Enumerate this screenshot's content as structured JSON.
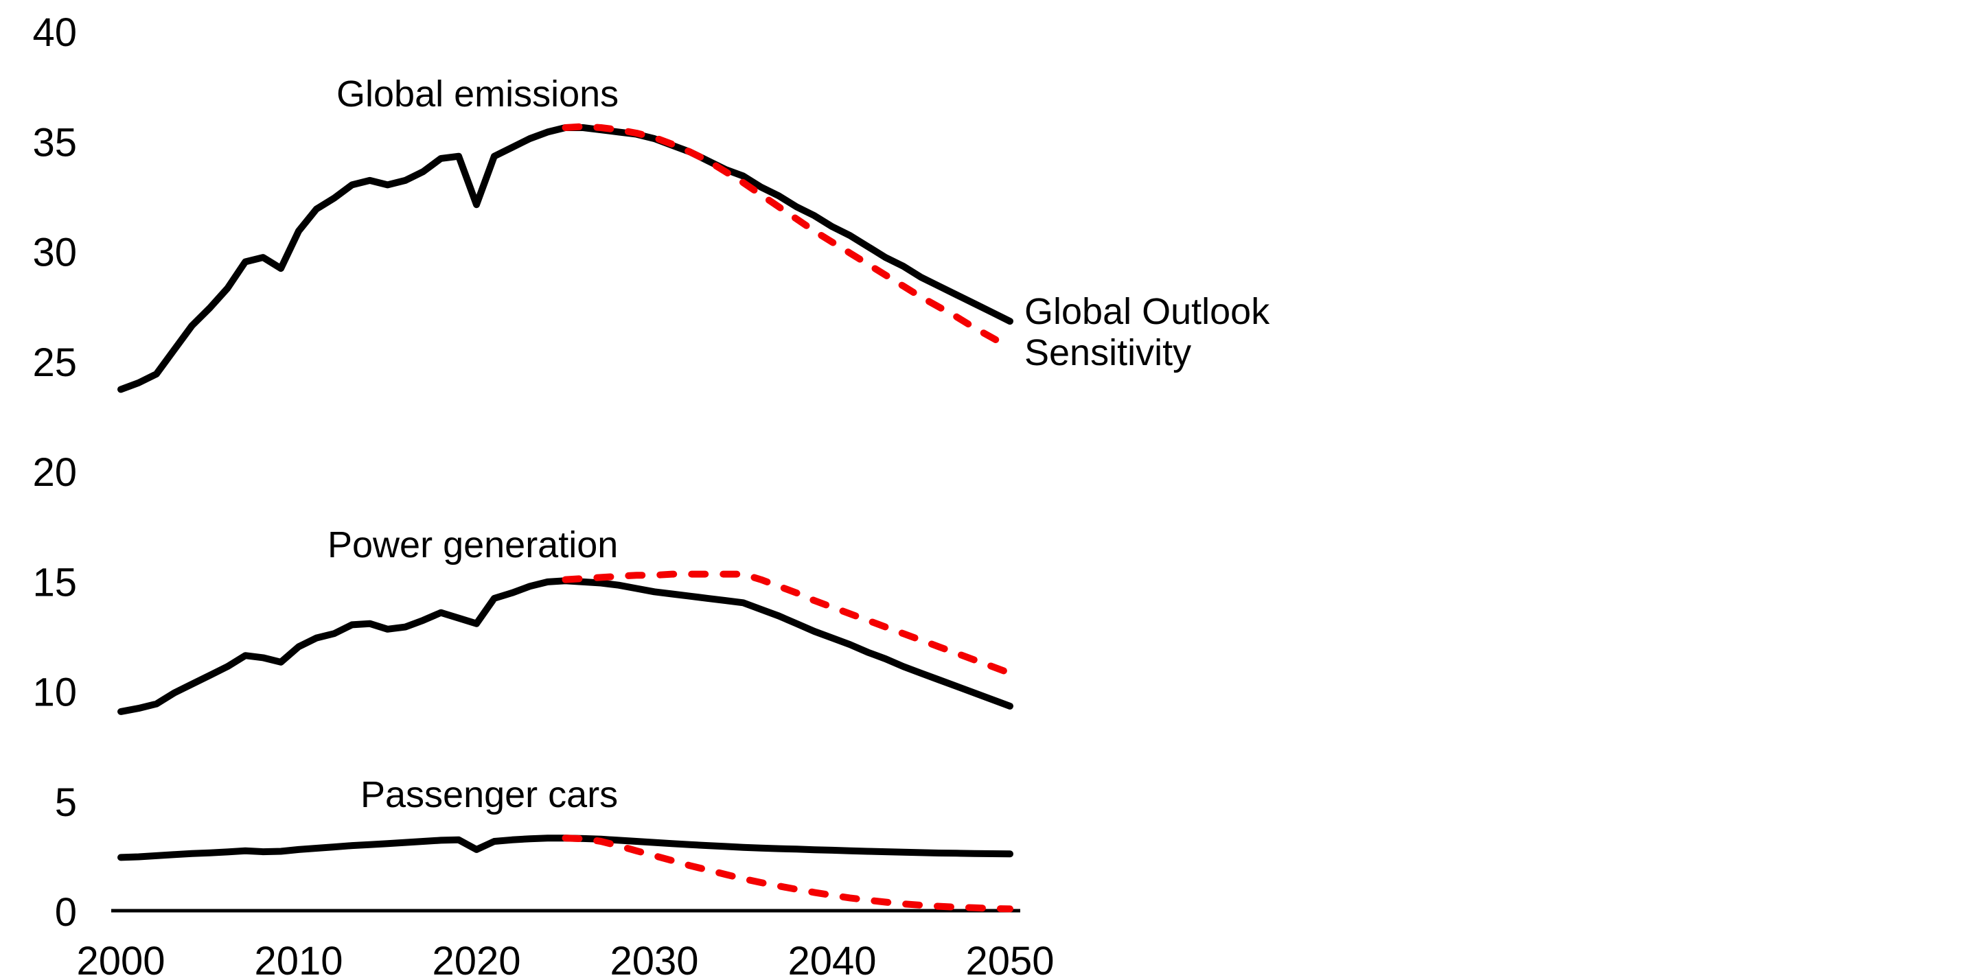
{
  "page": {
    "background": "#ffffff"
  },
  "chart_data": {
    "type": "line",
    "title": "",
    "xlabel": "",
    "ylabel": "",
    "xlim": [
      2000,
      2050
    ],
    "ylim": [
      0,
      40
    ],
    "x_ticks": [
      2000,
      2010,
      2020,
      2030,
      2040,
      2050
    ],
    "y_ticks": [
      0,
      5,
      10,
      15,
      20,
      25,
      30,
      35,
      40
    ],
    "grid": false,
    "axis_line_color": "#000000",
    "legend_position": "right-of-line-ends",
    "legend": {
      "outlook_label": "Global Outlook",
      "sensitivity_label": "Sensitivity",
      "outlook_color": "#000000",
      "sensitivity_color": "#f40000"
    },
    "groups": [
      {
        "label": "Global emissions",
        "series": [
          {
            "name": "Global Outlook",
            "style": "solid",
            "color": "#000000",
            "points": [
              [
                2000,
                23.7
              ],
              [
                2001,
                24.0
              ],
              [
                2002,
                24.4
              ],
              [
                2003,
                25.5
              ],
              [
                2004,
                26.6
              ],
              [
                2005,
                27.4
              ],
              [
                2006,
                28.3
              ],
              [
                2007,
                29.5
              ],
              [
                2008,
                29.7
              ],
              [
                2009,
                29.2
              ],
              [
                2010,
                30.9
              ],
              [
                2011,
                31.9
              ],
              [
                2012,
                32.4
              ],
              [
                2013,
                33.0
              ],
              [
                2014,
                33.2
              ],
              [
                2015,
                33.0
              ],
              [
                2016,
                33.2
              ],
              [
                2017,
                33.6
              ],
              [
                2018,
                34.2
              ],
              [
                2019,
                34.3
              ],
              [
                2020,
                32.1
              ],
              [
                2021,
                34.3
              ],
              [
                2022,
                34.7
              ],
              [
                2023,
                35.1
              ],
              [
                2024,
                35.4
              ],
              [
                2025,
                35.6
              ],
              [
                2026,
                35.6
              ],
              [
                2027,
                35.5
              ],
              [
                2028,
                35.4
              ],
              [
                2029,
                35.3
              ],
              [
                2030,
                35.1
              ],
              [
                2031,
                34.8
              ],
              [
                2032,
                34.5
              ],
              [
                2033,
                34.1
              ],
              [
                2034,
                33.7
              ],
              [
                2035,
                33.4
              ],
              [
                2036,
                32.9
              ],
              [
                2037,
                32.5
              ],
              [
                2038,
                32.0
              ],
              [
                2039,
                31.6
              ],
              [
                2040,
                31.1
              ],
              [
                2041,
                30.7
              ],
              [
                2042,
                30.2
              ],
              [
                2043,
                29.7
              ],
              [
                2044,
                29.3
              ],
              [
                2045,
                28.8
              ],
              [
                2046,
                28.4
              ],
              [
                2047,
                28.0
              ],
              [
                2048,
                27.6
              ],
              [
                2049,
                27.2
              ],
              [
                2050,
                26.8
              ]
            ]
          },
          {
            "name": "Sensitivity",
            "style": "dashed",
            "color": "#f40000",
            "points": [
              [
                2025,
                35.6
              ],
              [
                2026,
                35.65
              ],
              [
                2027,
                35.6
              ],
              [
                2028,
                35.5
              ],
              [
                2029,
                35.35
              ],
              [
                2030,
                35.15
              ],
              [
                2031,
                34.85
              ],
              [
                2032,
                34.5
              ],
              [
                2033,
                34.1
              ],
              [
                2034,
                33.6
              ],
              [
                2035,
                33.1
              ],
              [
                2036,
                32.55
              ],
              [
                2037,
                32.0
              ],
              [
                2038,
                31.45
              ],
              [
                2039,
                30.9
              ],
              [
                2040,
                30.4
              ],
              [
                2041,
                29.9
              ],
              [
                2042,
                29.4
              ],
              [
                2043,
                28.9
              ],
              [
                2044,
                28.4
              ],
              [
                2045,
                27.9
              ],
              [
                2046,
                27.45
              ],
              [
                2047,
                27.0
              ],
              [
                2048,
                26.5
              ],
              [
                2049,
                26.05
              ],
              [
                2050,
                25.6
              ]
            ]
          }
        ]
      },
      {
        "label": "Power generation",
        "series": [
          {
            "name": "Global Outlook",
            "style": "solid",
            "color": "#000000",
            "points": [
              [
                2000,
                9.05
              ],
              [
                2001,
                9.2
              ],
              [
                2002,
                9.4
              ],
              [
                2003,
                9.9
              ],
              [
                2004,
                10.3
              ],
              [
                2005,
                10.7
              ],
              [
                2006,
                11.1
              ],
              [
                2007,
                11.6
              ],
              [
                2008,
                11.5
              ],
              [
                2009,
                11.3
              ],
              [
                2010,
                12.0
              ],
              [
                2011,
                12.4
              ],
              [
                2012,
                12.6
              ],
              [
                2013,
                13.0
              ],
              [
                2014,
                13.05
              ],
              [
                2015,
                12.8
              ],
              [
                2016,
                12.9
              ],
              [
                2017,
                13.2
              ],
              [
                2018,
                13.55
              ],
              [
                2019,
                13.3
              ],
              [
                2020,
                13.05
              ],
              [
                2021,
                14.2
              ],
              [
                2022,
                14.45
              ],
              [
                2023,
                14.75
              ],
              [
                2024,
                14.95
              ],
              [
                2025,
                15.0
              ],
              [
                2026,
                14.95
              ],
              [
                2027,
                14.9
              ],
              [
                2028,
                14.8
              ],
              [
                2029,
                14.65
              ],
              [
                2030,
                14.5
              ],
              [
                2031,
                14.4
              ],
              [
                2032,
                14.3
              ],
              [
                2033,
                14.2
              ],
              [
                2034,
                14.1
              ],
              [
                2035,
                14.0
              ],
              [
                2036,
                13.7
              ],
              [
                2037,
                13.4
              ],
              [
                2038,
                13.05
              ],
              [
                2039,
                12.7
              ],
              [
                2040,
                12.4
              ],
              [
                2041,
                12.1
              ],
              [
                2042,
                11.75
              ],
              [
                2043,
                11.45
              ],
              [
                2044,
                11.1
              ],
              [
                2045,
                10.8
              ],
              [
                2046,
                10.5
              ],
              [
                2047,
                10.2
              ],
              [
                2048,
                9.9
              ],
              [
                2049,
                9.6
              ],
              [
                2050,
                9.3
              ]
            ]
          },
          {
            "name": "Sensitivity",
            "style": "dashed",
            "color": "#f40000",
            "points": [
              [
                2025,
                15.05
              ],
              [
                2026,
                15.1
              ],
              [
                2027,
                15.15
              ],
              [
                2028,
                15.2
              ],
              [
                2029,
                15.25
              ],
              [
                2030,
                15.25
              ],
              [
                2031,
                15.3
              ],
              [
                2032,
                15.3
              ],
              [
                2033,
                15.3
              ],
              [
                2034,
                15.3
              ],
              [
                2035,
                15.3
              ],
              [
                2036,
                15.05
              ],
              [
                2037,
                14.75
              ],
              [
                2038,
                14.45
              ],
              [
                2039,
                14.1
              ],
              [
                2040,
                13.8
              ],
              [
                2041,
                13.5
              ],
              [
                2042,
                13.2
              ],
              [
                2043,
                12.9
              ],
              [
                2044,
                12.6
              ],
              [
                2045,
                12.3
              ],
              [
                2046,
                12.0
              ],
              [
                2047,
                11.7
              ],
              [
                2048,
                11.4
              ],
              [
                2049,
                11.1
              ],
              [
                2050,
                10.8
              ]
            ]
          }
        ]
      },
      {
        "label": "Passenger cars",
        "series": [
          {
            "name": "Global Outlook",
            "style": "solid",
            "color": "#000000",
            "points": [
              [
                2000,
                2.42
              ],
              [
                2001,
                2.45
              ],
              [
                2002,
                2.5
              ],
              [
                2003,
                2.55
              ],
              [
                2004,
                2.6
              ],
              [
                2005,
                2.63
              ],
              [
                2006,
                2.67
              ],
              [
                2007,
                2.72
              ],
              [
                2008,
                2.68
              ],
              [
                2009,
                2.7
              ],
              [
                2010,
                2.78
              ],
              [
                2011,
                2.84
              ],
              [
                2012,
                2.9
              ],
              [
                2013,
                2.96
              ],
              [
                2014,
                3.0
              ],
              [
                2015,
                3.05
              ],
              [
                2016,
                3.1
              ],
              [
                2017,
                3.15
              ],
              [
                2018,
                3.2
              ],
              [
                2019,
                3.22
              ],
              [
                2020,
                2.78
              ],
              [
                2021,
                3.15
              ],
              [
                2022,
                3.22
              ],
              [
                2023,
                3.27
              ],
              [
                2024,
                3.3
              ],
              [
                2025,
                3.3
              ],
              [
                2026,
                3.28
              ],
              [
                2027,
                3.25
              ],
              [
                2028,
                3.2
              ],
              [
                2029,
                3.15
              ],
              [
                2030,
                3.1
              ],
              [
                2031,
                3.05
              ],
              [
                2032,
                3.0
              ],
              [
                2033,
                2.96
              ],
              [
                2034,
                2.92
              ],
              [
                2035,
                2.88
              ],
              [
                2036,
                2.85
              ],
              [
                2037,
                2.82
              ],
              [
                2038,
                2.8
              ],
              [
                2039,
                2.77
              ],
              [
                2040,
                2.75
              ],
              [
                2041,
                2.72
              ],
              [
                2042,
                2.7
              ],
              [
                2043,
                2.68
              ],
              [
                2044,
                2.66
              ],
              [
                2045,
                2.64
              ],
              [
                2046,
                2.62
              ],
              [
                2047,
                2.61
              ],
              [
                2048,
                2.6
              ],
              [
                2049,
                2.59
              ],
              [
                2050,
                2.58
              ]
            ]
          },
          {
            "name": "Sensitivity",
            "style": "dashed",
            "color": "#f40000",
            "points": [
              [
                2025,
                3.3
              ],
              [
                2026,
                3.27
              ],
              [
                2027,
                3.15
              ],
              [
                2028,
                2.95
              ],
              [
                2029,
                2.72
              ],
              [
                2030,
                2.5
              ],
              [
                2031,
                2.28
              ],
              [
                2032,
                2.05
              ],
              [
                2033,
                1.85
              ],
              [
                2034,
                1.65
              ],
              [
                2035,
                1.45
              ],
              [
                2036,
                1.28
              ],
              [
                2037,
                1.12
              ],
              [
                2038,
                0.97
              ],
              [
                2039,
                0.83
              ],
              [
                2040,
                0.7
              ],
              [
                2041,
                0.58
              ],
              [
                2042,
                0.48
              ],
              [
                2043,
                0.39
              ],
              [
                2044,
                0.31
              ],
              [
                2045,
                0.25
              ],
              [
                2046,
                0.2
              ],
              [
                2047,
                0.16
              ],
              [
                2048,
                0.13
              ],
              [
                2049,
                0.1
              ],
              [
                2050,
                0.08
              ]
            ]
          }
        ]
      }
    ]
  }
}
